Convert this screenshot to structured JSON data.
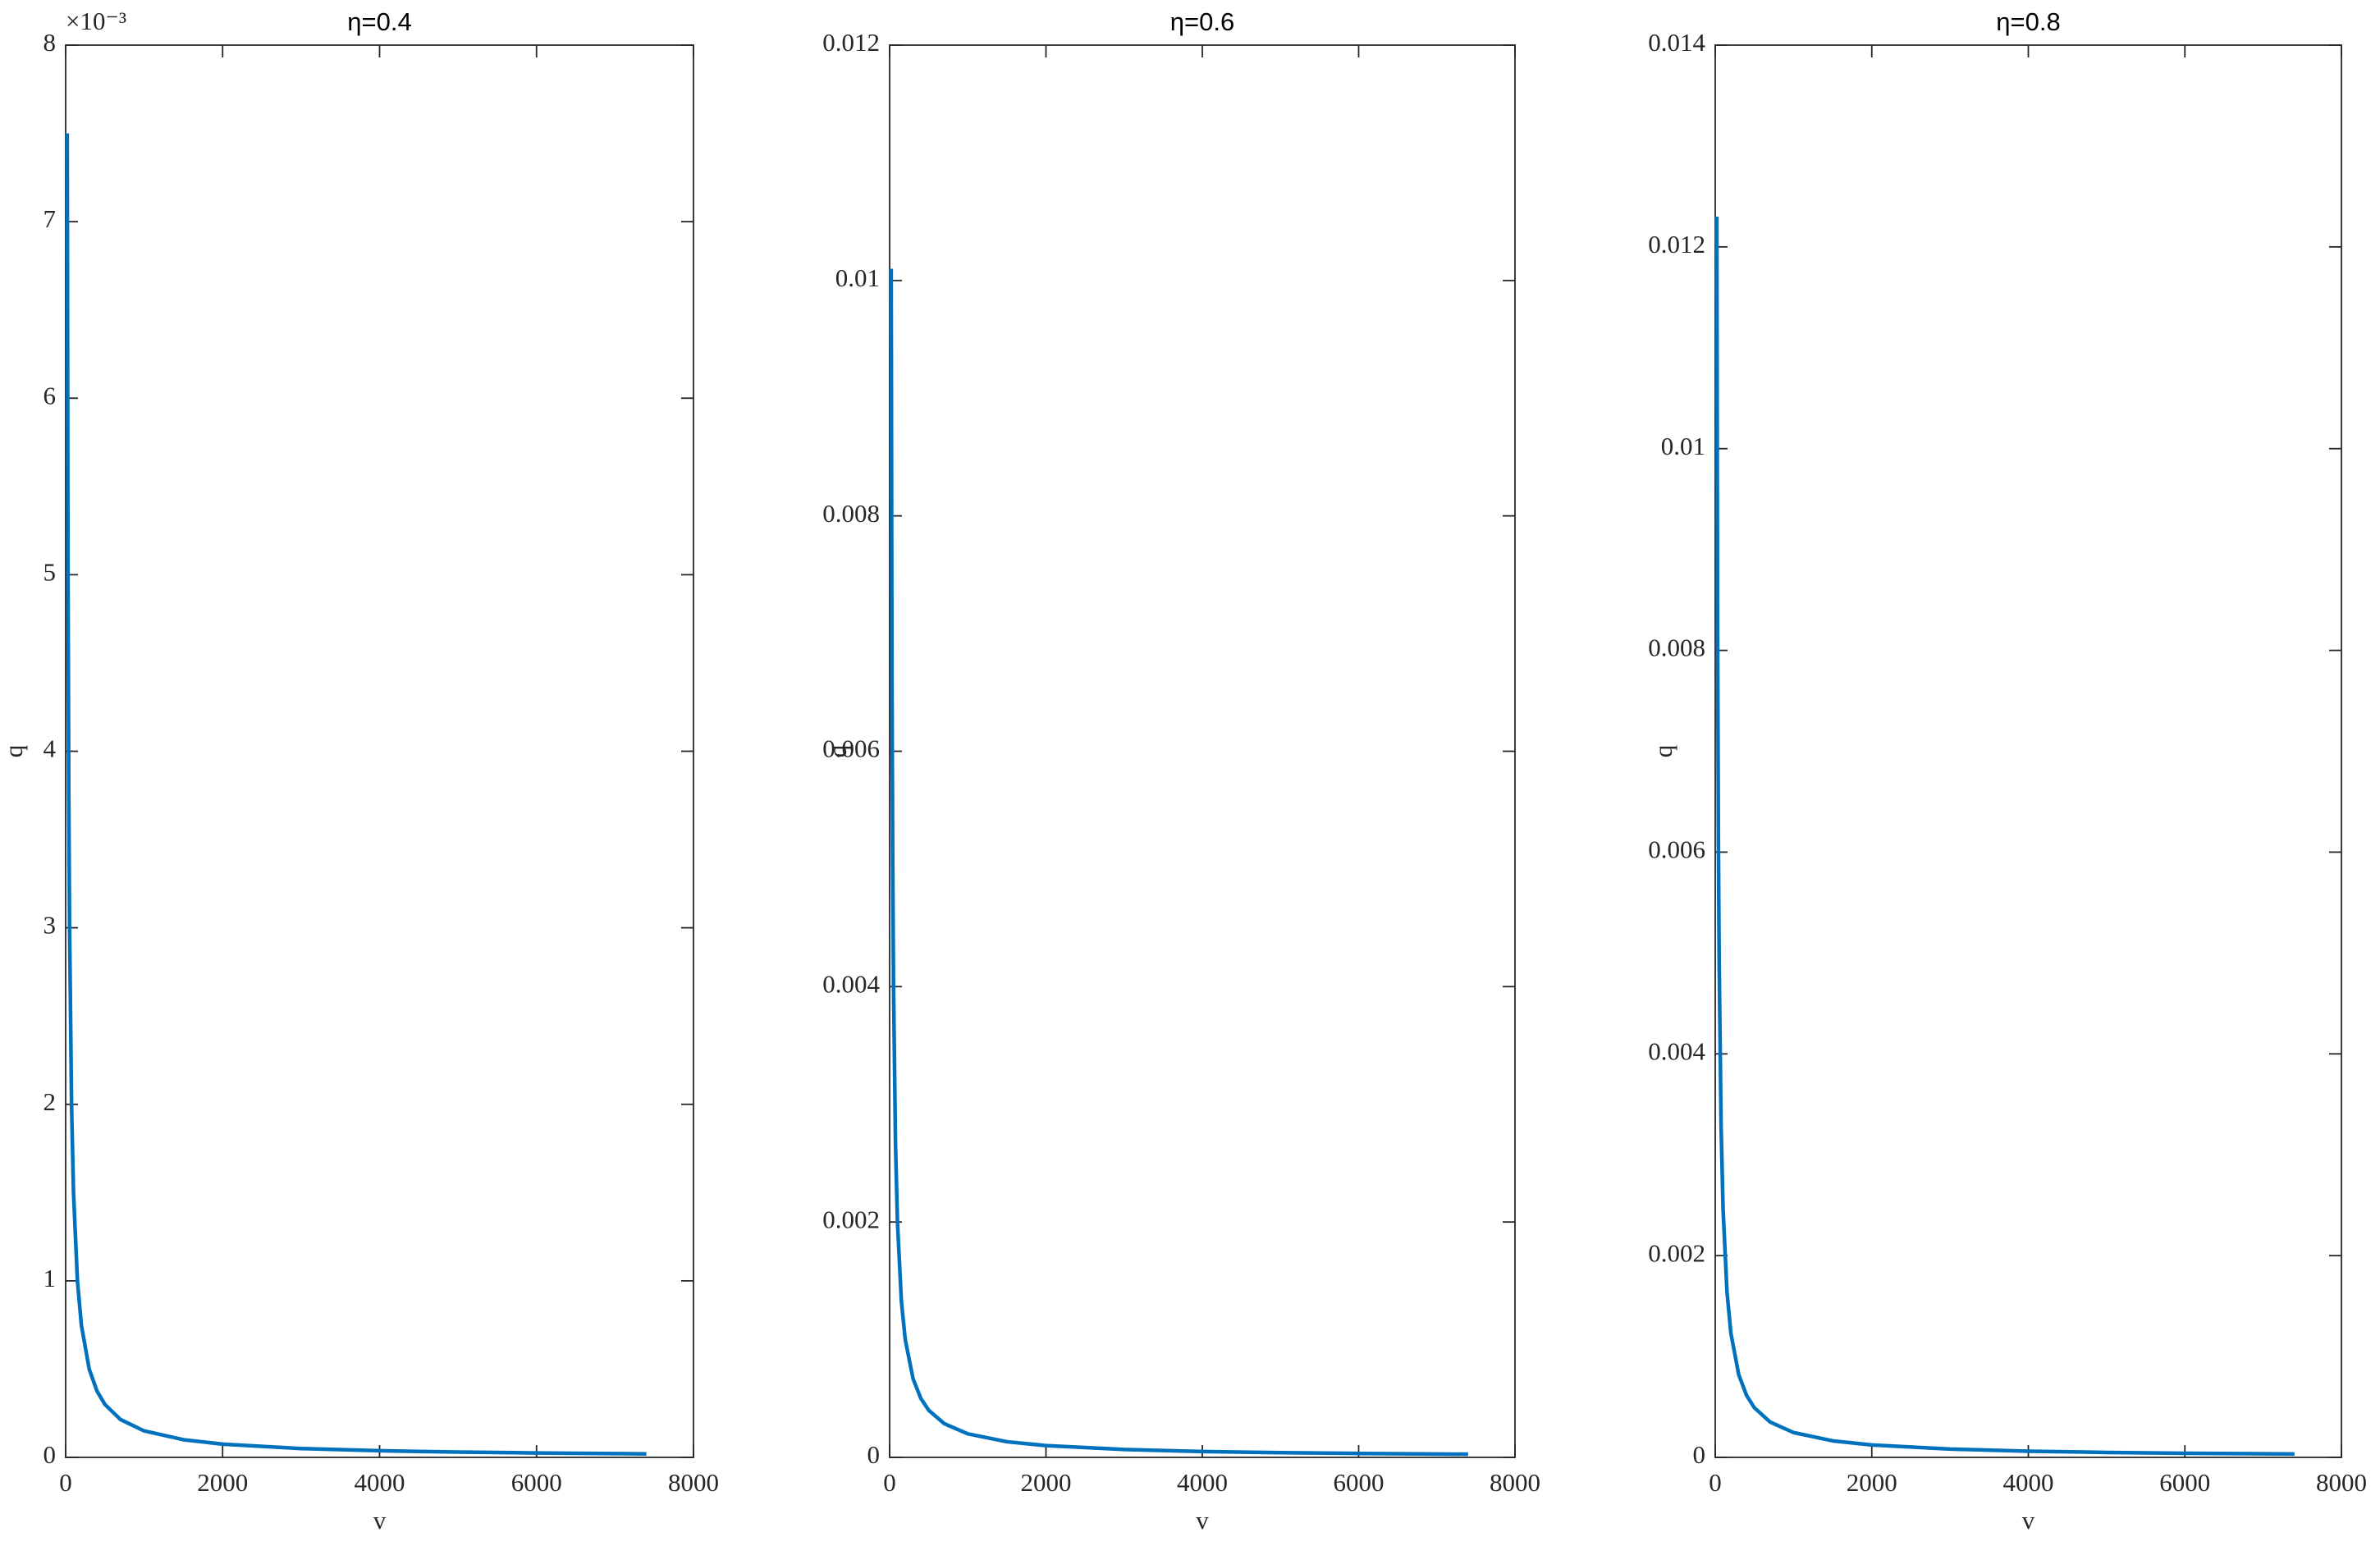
{
  "chart_data": [
    {
      "type": "line",
      "title": "η=0.4",
      "x_label": "v",
      "y_label": "q",
      "y_multiplier": "×10⁻³",
      "x": [
        20,
        30,
        40,
        50,
        75,
        100,
        150,
        200,
        300,
        400,
        500,
        700,
        1000,
        1500,
        2000,
        3000,
        4000,
        5000,
        6000,
        7400
      ],
      "series": [
        {
          "color": "#0072bd",
          "values": [
            0.0075,
            0.005,
            0.00375,
            0.003,
            0.002,
            0.0015,
            0.001,
            0.00075,
            0.0005,
            0.000375,
            0.0003,
            0.000214,
            0.00015,
            0.0001,
            7.5e-05,
            5e-05,
            3.75e-05,
            3e-05,
            2.5e-05,
            2e-05
          ]
        }
      ],
      "xlim": [
        0,
        8000
      ],
      "xticks": [
        0,
        2000,
        4000,
        6000,
        8000
      ],
      "ylim": [
        0,
        0.008
      ],
      "yticks": [
        {
          "value": 0,
          "label": "0"
        },
        {
          "value": 0.001,
          "label": "1"
        },
        {
          "value": 0.002,
          "label": "2"
        },
        {
          "value": 0.003,
          "label": "3"
        },
        {
          "value": 0.004,
          "label": "4"
        },
        {
          "value": 0.005,
          "label": "5"
        },
        {
          "value": 0.006,
          "label": "6"
        },
        {
          "value": 0.007,
          "label": "7"
        },
        {
          "value": 0.008,
          "label": "8"
        }
      ]
    },
    {
      "type": "line",
      "title": "η=0.6",
      "x_label": "v",
      "y_label": "q",
      "x": [
        20,
        30,
        40,
        50,
        75,
        100,
        150,
        200,
        300,
        400,
        500,
        700,
        1000,
        1500,
        2000,
        3000,
        4000,
        5000,
        6000,
        7400
      ],
      "series": [
        {
          "color": "#0072bd",
          "values": [
            0.0101,
            0.00667,
            0.005,
            0.004,
            0.00267,
            0.002,
            0.00133,
            0.001,
            0.000667,
            0.0005,
            0.0004,
            0.000286,
            0.0002,
            0.000133,
            0.0001,
            6.67e-05,
            5e-05,
            4e-05,
            3.33e-05,
            2.7e-05
          ]
        }
      ],
      "xlim": [
        0,
        8000
      ],
      "xticks": [
        0,
        2000,
        4000,
        6000,
        8000
      ],
      "ylim": [
        0,
        0.012
      ],
      "yticks": [
        0,
        0.002,
        0.004,
        0.006,
        0.008,
        0.01,
        0.012
      ]
    },
    {
      "type": "line",
      "title": "η=0.8",
      "x_label": "v",
      "y_label": "q",
      "x": [
        20,
        30,
        40,
        50,
        75,
        100,
        150,
        200,
        300,
        400,
        500,
        700,
        1000,
        1500,
        2000,
        3000,
        4000,
        5000,
        6000,
        7400
      ],
      "series": [
        {
          "color": "#0072bd",
          "values": [
            0.0123,
            0.0082,
            0.00615,
            0.00492,
            0.00328,
            0.00246,
            0.00164,
            0.00123,
            0.00082,
            0.000615,
            0.000492,
            0.000351,
            0.000246,
            0.000164,
            0.000123,
            8.2e-05,
            6.15e-05,
            4.92e-05,
            4.1e-05,
            3.32e-05
          ]
        }
      ],
      "xlim": [
        0,
        8000
      ],
      "xticks": [
        0,
        2000,
        4000,
        6000,
        8000
      ],
      "ylim": [
        0,
        0.014
      ],
      "yticks": [
        0,
        0.002,
        0.004,
        0.006,
        0.008,
        0.01,
        0.012,
        0.014
      ]
    }
  ]
}
